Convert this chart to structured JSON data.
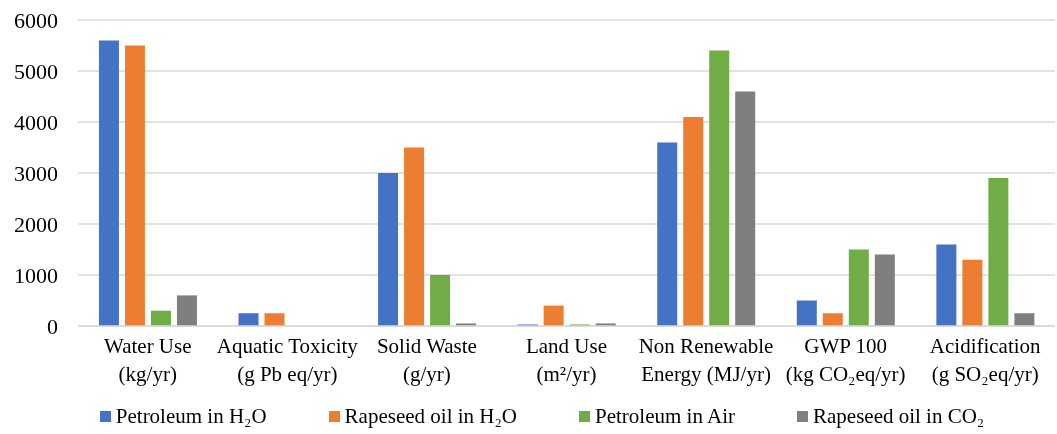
{
  "chart_data": {
    "type": "bar",
    "categories": [
      "Water Use (kg/yr)",
      "Aquatic Toxicity (g Pb eq/yr)",
      "Solid Waste (g/yr)",
      "Land Use (m²/yr)",
      "Non Renewable Energy (MJ/yr)",
      "GWP 100 (kg CO₂eq/yr)",
      "Acidification (g SO₂eq/yr)"
    ],
    "series": [
      {
        "name": "Petroleum in H₂O",
        "color": "#4472c4",
        "values": [
          5600,
          250,
          3000,
          30,
          3600,
          500,
          1600
        ]
      },
      {
        "name": "Rapeseed oil in H₂O",
        "color": "#ed7d31",
        "values": [
          5500,
          250,
          3500,
          400,
          4100,
          250,
          1300
        ]
      },
      {
        "name": "Petroleum in Air",
        "color": "#70ad47",
        "values": [
          300,
          null,
          1000,
          30,
          5400,
          1500,
          2900
        ]
      },
      {
        "name": "Rapeseed oil in CO₂",
        "color": "#7f7f7f",
        "values": [
          600,
          null,
          50,
          50,
          4600,
          1400,
          250
        ]
      }
    ],
    "ylim": [
      0,
      6000
    ],
    "yticks": [
      0,
      1000,
      2000,
      3000,
      4000,
      5000,
      6000
    ],
    "grid": "y",
    "legend": "bottom"
  }
}
